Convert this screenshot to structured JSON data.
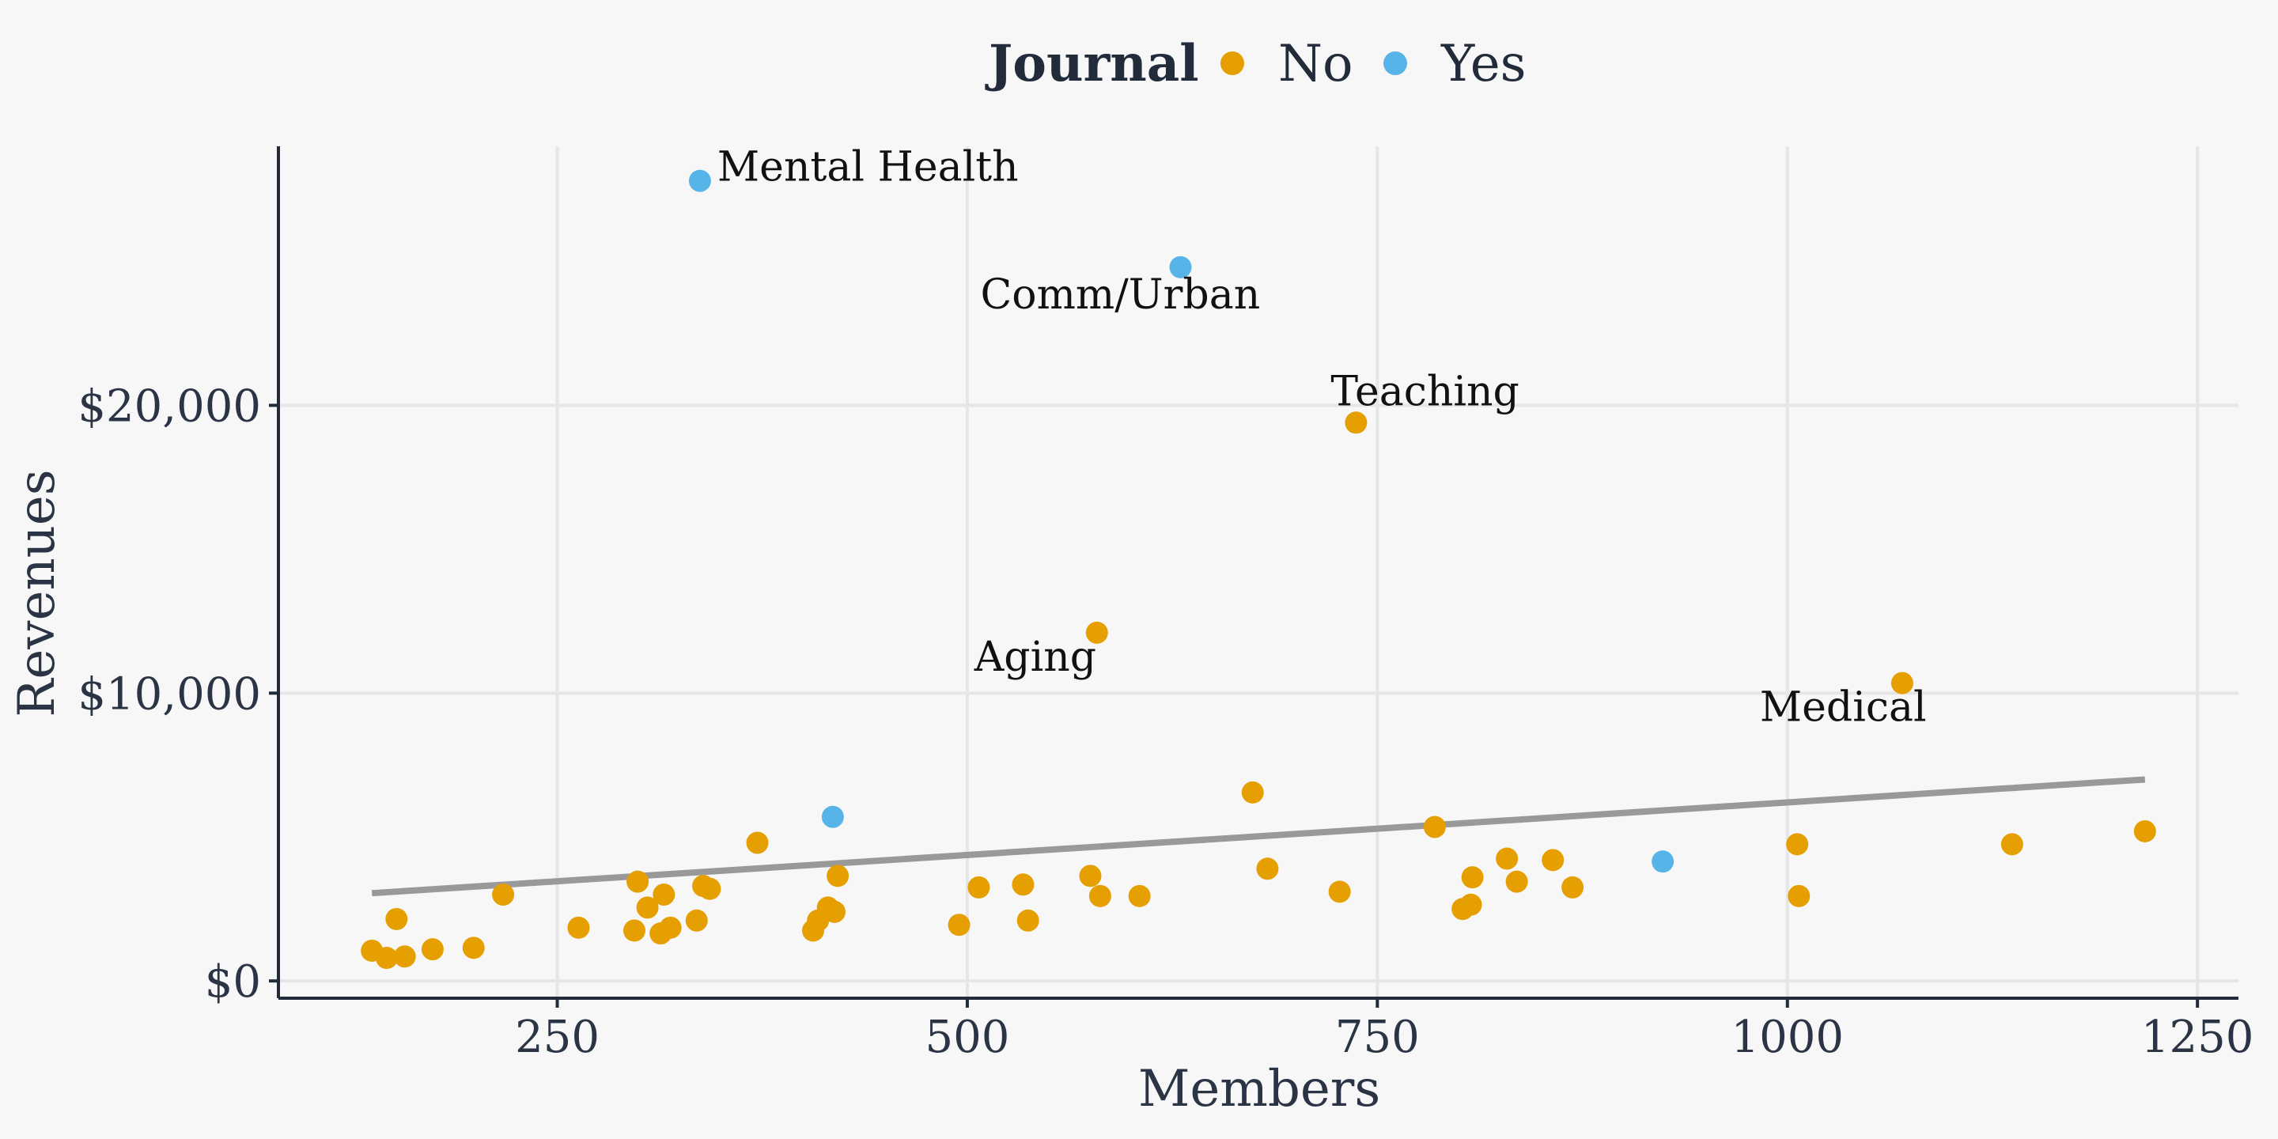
{
  "chart_data": {
    "type": "scatter",
    "xlabel": "Members",
    "ylabel": "Revenues",
    "xlim": [
      80,
      1275
    ],
    "ylim": [
      -600,
      29000
    ],
    "xticks": [
      250,
      500,
      750,
      1000,
      1250
    ],
    "xtick_labels": [
      "250",
      "500",
      "750",
      "1000",
      "1250"
    ],
    "yticks": [
      0,
      10000,
      20000
    ],
    "ytick_labels": [
      "$0",
      "$10,000",
      "$20,000"
    ],
    "grid": true,
    "legend": {
      "title": "Journal",
      "placement": "top",
      "entries": [
        {
          "label": "No",
          "color": "#E69F00"
        },
        {
          "label": "Yes",
          "color": "#56B4E9"
        }
      ]
    },
    "trend_line": {
      "x": [
        137,
        1218
      ],
      "y": [
        3050,
        7000
      ],
      "color": "#999999"
    },
    "series": [
      {
        "name": "No",
        "color": "#E69F00",
        "points": [
          [
            137,
            1050
          ],
          [
            146,
            800
          ],
          [
            152,
            2150
          ],
          [
            157,
            850
          ],
          [
            174,
            1100
          ],
          [
            199,
            1150
          ],
          [
            217,
            3000
          ],
          [
            263,
            1850
          ],
          [
            297,
            1750
          ],
          [
            299,
            3450
          ],
          [
            305,
            2550
          ],
          [
            313,
            1650
          ],
          [
            315,
            3000
          ],
          [
            319,
            1850
          ],
          [
            335,
            2100
          ],
          [
            339,
            3300
          ],
          [
            343,
            3200
          ],
          [
            372,
            4800
          ],
          [
            406,
            1750
          ],
          [
            409,
            2100
          ],
          [
            415,
            2550
          ],
          [
            419,
            2400
          ],
          [
            421,
            3650
          ],
          [
            495,
            1950
          ],
          [
            507,
            3250
          ],
          [
            534,
            3350
          ],
          [
            537,
            2100
          ],
          [
            575,
            3650
          ],
          [
            579,
            12100
          ],
          [
            581,
            2950
          ],
          [
            605,
            2950
          ],
          [
            674,
            6550
          ],
          [
            683,
            3900
          ],
          [
            727,
            3100
          ],
          [
            737,
            19400
          ],
          [
            785,
            5350
          ],
          [
            802,
            2500
          ],
          [
            807,
            2650
          ],
          [
            808,
            3600
          ],
          [
            829,
            4250
          ],
          [
            835,
            3450
          ],
          [
            857,
            4200
          ],
          [
            869,
            3250
          ],
          [
            1006,
            4750
          ],
          [
            1007,
            2950
          ],
          [
            1070,
            10350
          ],
          [
            1137,
            4750
          ],
          [
            1218,
            5200
          ]
        ]
      },
      {
        "name": "Yes",
        "color": "#56B4E9",
        "points": [
          [
            337,
            27800
          ],
          [
            418,
            5700
          ],
          [
            630,
            24800
          ],
          [
            924,
            4150
          ]
        ]
      }
    ],
    "annotations": [
      {
        "text": "Mental Health",
        "x": 337,
        "y": 27800
      },
      {
        "text": "Comm/Urban",
        "x": 630,
        "y": 24800
      },
      {
        "text": "Teaching",
        "x": 737,
        "y": 19400
      },
      {
        "text": "Aging",
        "x": 579,
        "y": 12100
      },
      {
        "text": "Medical",
        "x": 1070,
        "y": 10350
      }
    ]
  }
}
